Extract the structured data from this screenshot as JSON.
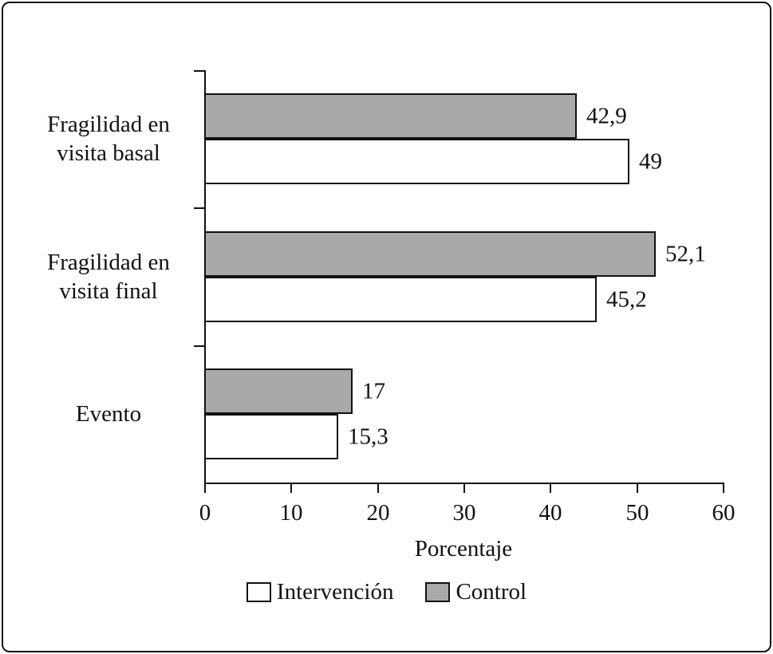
{
  "chart_data": {
    "type": "bar",
    "orientation": "horizontal",
    "title": "",
    "xlabel": "Porcentaje",
    "ylabel": "",
    "xlim": [
      0,
      60
    ],
    "xticks": [
      "0",
      "10",
      "20",
      "30",
      "40",
      "50",
      "60"
    ],
    "xtick_values": [
      0,
      10,
      20,
      30,
      40,
      50,
      60
    ],
    "grid": false,
    "legend_position": "bottom",
    "categories": [
      "Fragilidad en visita basal",
      "Fragilidad en visita final",
      "Evento"
    ],
    "category_lines": [
      [
        "Fragilidad en",
        "visita basal"
      ],
      [
        "Fragilidad en",
        "visita final"
      ],
      [
        "Evento"
      ]
    ],
    "series": [
      {
        "name": "Intervención",
        "color": "#ffffff",
        "values": [
          49,
          45.2,
          15.3
        ],
        "value_labels": [
          "49",
          "45,2",
          "15,3"
        ]
      },
      {
        "name": "Control",
        "color": "#a9a9a9",
        "values": [
          42.9,
          52.1,
          17
        ],
        "value_labels": [
          "42,9",
          "52,1",
          "17"
        ]
      }
    ],
    "bar_order_top_to_bottom_in_group": [
      "Control",
      "Intervención"
    ]
  }
}
